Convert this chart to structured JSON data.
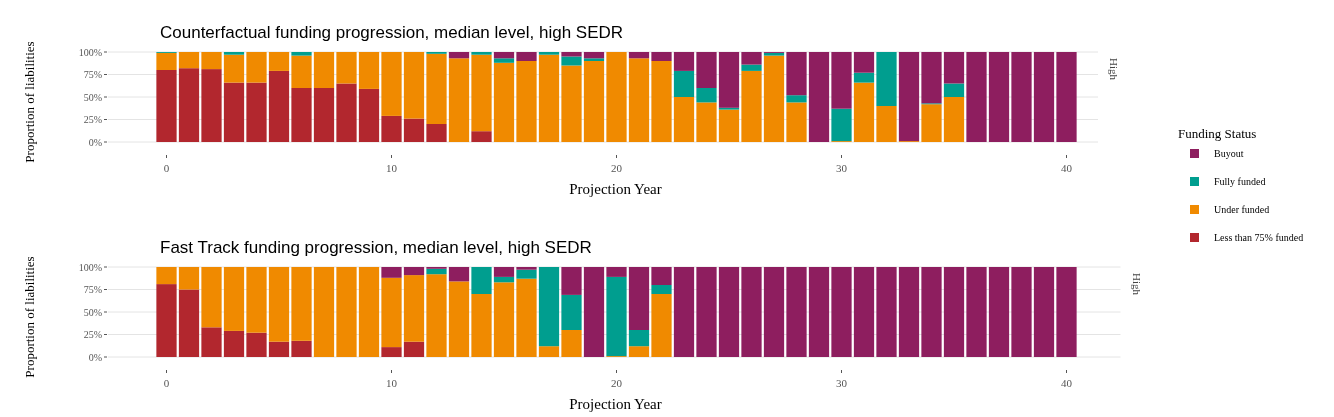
{
  "chart_data": [
    {
      "type": "bar",
      "stacked": true,
      "title": "Counterfactual funding progression, median level, high SEDR",
      "xlabel": "Projection Year",
      "ylabel": "Proportion of liabilities",
      "legend_title": "Funding Status",
      "legend": "right",
      "grid": "y",
      "annotations": [
        "High"
      ],
      "x": [
        0,
        1,
        2,
        3,
        4,
        5,
        6,
        7,
        8,
        9,
        10,
        11,
        12,
        13,
        14,
        15,
        16,
        17,
        18,
        19,
        20,
        21,
        22,
        23,
        24,
        25,
        26,
        27,
        28,
        29,
        30,
        31,
        32,
        33,
        34,
        35,
        36,
        37,
        38,
        39,
        40
      ],
      "xlim": [
        -2.6,
        41.4
      ],
      "xticks": [
        0,
        10,
        20,
        30,
        40
      ],
      "ylim": [
        0,
        100
      ],
      "yticks": [
        {
          "value": 0,
          "label": "0%"
        },
        {
          "value": 25,
          "label": "25%"
        },
        {
          "value": 50,
          "label": "50%"
        },
        {
          "value": 75,
          "label": "75%"
        },
        {
          "value": 100,
          "label": "100%"
        }
      ],
      "series": [
        {
          "name": "Less than 75% funded",
          "color": "#b2272e",
          "values": [
            80,
            82,
            81,
            66,
            66,
            79,
            60,
            60,
            65,
            59,
            29,
            26,
            20,
            0,
            12,
            0,
            0,
            0,
            0,
            0,
            0,
            0,
            0,
            0,
            0,
            0,
            0,
            0,
            0,
            0,
            0,
            0,
            0,
            0,
            0,
            0,
            0,
            0,
            0,
            0,
            0
          ]
        },
        {
          "name": "Under funded",
          "color": "#f08a00",
          "values": [
            19,
            18,
            19,
            31,
            34,
            21,
            36,
            40,
            35,
            41,
            71,
            74,
            78,
            93,
            85,
            88,
            90,
            97,
            85,
            90,
            100,
            93,
            90,
            50,
            44,
            36,
            79,
            96,
            44,
            0,
            1,
            66,
            40,
            1,
            42,
            50,
            0,
            0,
            0,
            0,
            0
          ]
        },
        {
          "name": "Fully funded",
          "color": "#009e8f",
          "values": [
            1,
            0,
            0,
            3,
            0,
            0,
            4,
            0,
            0,
            0,
            0,
            0,
            2,
            0,
            3,
            5,
            0,
            3,
            10,
            3,
            0,
            0,
            0,
            29,
            16,
            2,
            7,
            3,
            8,
            0,
            36,
            11,
            60,
            0,
            1,
            15,
            0,
            0,
            0,
            0,
            0
          ]
        },
        {
          "name": "Buyout",
          "color": "#8e1e5f",
          "values": [
            0,
            0,
            0,
            0,
            0,
            0,
            0,
            0,
            0,
            0,
            0,
            0,
            0,
            7,
            0,
            7,
            10,
            0,
            5,
            7,
            0,
            7,
            10,
            21,
            40,
            62,
            14,
            1,
            48,
            100,
            63,
            23,
            0,
            99,
            57,
            35,
            100,
            100,
            100,
            100,
            100
          ]
        }
      ]
    },
    {
      "type": "bar",
      "stacked": true,
      "title": "Fast Track funding progression, median level, high SEDR",
      "xlabel": "Projection Year",
      "ylabel": "Proportion of liabilities",
      "grid": "y",
      "annotations": [
        "High"
      ],
      "x": [
        0,
        1,
        2,
        3,
        4,
        5,
        6,
        7,
        8,
        9,
        10,
        11,
        12,
        13,
        14,
        15,
        16,
        17,
        18,
        19,
        20,
        21,
        22,
        23,
        24,
        25,
        26,
        27,
        28,
        29,
        30,
        31,
        32,
        33,
        34,
        35,
        36,
        37,
        38,
        39,
        40
      ],
      "xlim": [
        -2.6,
        42.4
      ],
      "xticks": [
        0,
        10,
        20,
        30,
        40
      ],
      "ylim": [
        0,
        100
      ],
      "yticks": [
        {
          "value": 0,
          "label": "0%"
        },
        {
          "value": 25,
          "label": "25%"
        },
        {
          "value": 50,
          "label": "50%"
        },
        {
          "value": 75,
          "label": "75%"
        },
        {
          "value": 100,
          "label": "100%"
        }
      ],
      "series": [
        {
          "color": "#b2272e",
          "values": [
            81,
            75,
            33,
            29,
            27,
            17,
            18,
            0,
            0,
            0,
            11,
            17,
            0,
            0,
            0,
            0,
            0,
            0,
            0,
            0,
            0,
            0,
            0,
            0,
            0,
            0,
            0,
            0,
            0,
            0,
            0,
            0,
            0,
            0,
            0,
            0,
            0,
            0,
            0,
            0,
            0
          ]
        },
        {
          "color": "#f08a00",
          "values": [
            19,
            25,
            67,
            71,
            73,
            83,
            82,
            100,
            100,
            100,
            77,
            74,
            92,
            84,
            70,
            83,
            87,
            12,
            30,
            0,
            1,
            12,
            70,
            0,
            0,
            0,
            0,
            0,
            0,
            0,
            0,
            0,
            0,
            0,
            0,
            0,
            0,
            0,
            0,
            0,
            0
          ]
        },
        {
          "color": "#009e8f",
          "values": [
            0,
            0,
            0,
            0,
            0,
            0,
            0,
            0,
            0,
            0,
            0,
            0,
            6,
            0,
            30,
            6,
            10,
            88,
            39,
            0,
            88,
            18,
            10,
            0,
            0,
            0,
            0,
            0,
            0,
            0,
            0,
            0,
            0,
            0,
            0,
            0,
            0,
            0,
            0,
            0,
            0
          ]
        },
        {
          "color": "#8e1e5f",
          "values": [
            0,
            0,
            0,
            0,
            0,
            0,
            0,
            0,
            0,
            0,
            12,
            9,
            2,
            16,
            0,
            11,
            3,
            0,
            31,
            100,
            11,
            70,
            20,
            100,
            100,
            100,
            100,
            100,
            100,
            100,
            100,
            100,
            100,
            100,
            100,
            100,
            100,
            100,
            100,
            100,
            100
          ]
        }
      ]
    }
  ]
}
